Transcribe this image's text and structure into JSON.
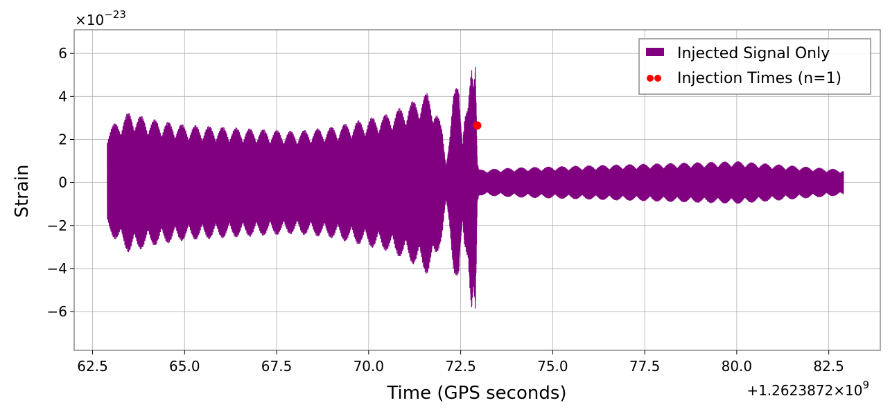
{
  "chart_data": {
    "type": "line",
    "title": "",
    "xlabel": "Time (GPS seconds)",
    "ylabel": "Strain",
    "x_offset_label": "+1.2623872×10",
    "x_offset_exp": "9",
    "y_scale_label": "×10",
    "y_scale_exp": "−23",
    "xlim": [
      62.0,
      83.9
    ],
    "ylim": [
      -7.8,
      7.1
    ],
    "x_ticks": [
      62.5,
      65.0,
      67.5,
      70.0,
      72.5,
      75.0,
      77.5,
      80.0,
      82.5
    ],
    "x_tick_labels": [
      "62.5",
      "65.0",
      "67.5",
      "70.0",
      "72.5",
      "75.0",
      "77.5",
      "80.0",
      "82.5"
    ],
    "y_ticks": [
      -6,
      -4,
      -2,
      0,
      2,
      4,
      6
    ],
    "y_tick_labels": [
      "−6",
      "−4",
      "−2",
      "0",
      "2",
      "4",
      "6"
    ],
    "grid": true,
    "legend_position": "top-right",
    "series": [
      {
        "name": "Injected Signal Only",
        "color": "#800080",
        "envelope": {
          "t": [
            62.9,
            63.5,
            64.0,
            65.0,
            66.0,
            67.0,
            68.0,
            69.0,
            69.5,
            70.0,
            70.5,
            71.0,
            71.3,
            71.6,
            71.8,
            72.0,
            72.1,
            72.2,
            72.3,
            72.45,
            72.55,
            72.6,
            72.7,
            72.8,
            72.85,
            72.9,
            72.95,
            73.0,
            74.0,
            76.0,
            78.0,
            80.0,
            82.9
          ],
          "upper": [
            2.5,
            3.3,
            3.0,
            2.7,
            2.6,
            2.5,
            2.4,
            2.6,
            2.8,
            3.0,
            3.2,
            3.6,
            3.9,
            4.2,
            3.6,
            2.5,
            1.0,
            2.2,
            4.0,
            5.3,
            2.0,
            3.0,
            3.5,
            6.2,
            6.0,
            6.5,
            1.0,
            0.6,
            0.7,
            0.8,
            0.9,
            1.0,
            0.6
          ],
          "lower": [
            -2.3,
            -3.3,
            -3.0,
            -2.7,
            -2.6,
            -2.5,
            -2.4,
            -2.6,
            -2.8,
            -3.0,
            -3.2,
            -3.6,
            -3.9,
            -4.3,
            -3.8,
            -2.5,
            -1.0,
            -2.2,
            -4.0,
            -5.2,
            -2.0,
            -3.0,
            -3.5,
            -7.0,
            -6.5,
            -7.2,
            -1.0,
            -0.6,
            -0.7,
            -0.8,
            -0.9,
            -1.0,
            -0.6
          ]
        }
      },
      {
        "name": "Injection Times (n=1)",
        "color": "#ff0000",
        "points": [
          {
            "x": 72.95,
            "y": 2.65
          }
        ]
      }
    ]
  }
}
